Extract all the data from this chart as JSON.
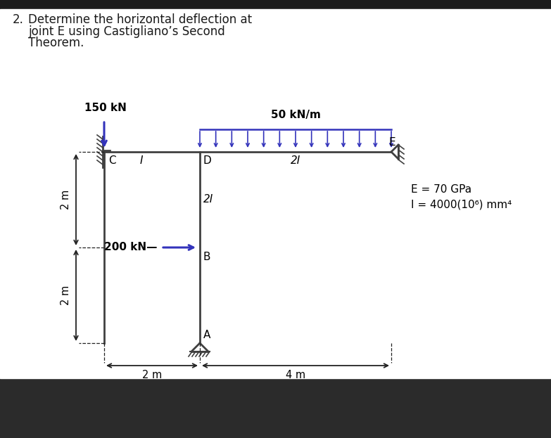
{
  "outer_bg": "#2b2b2b",
  "white_bg": "#ffffff",
  "struct_color": "#404040",
  "load_color": "#3333bb",
  "dim_color": "#222222",
  "label_150kN": "150 kN",
  "label_50kNm": "50 kN/m",
  "label_200kN": "200 kN",
  "label_E_prop": "E = 70 GPa",
  "label_I_prop": "I = 4000(10⁶) mm⁴",
  "node_C": "C",
  "node_I_label": "I",
  "node_D": "D",
  "node_2I_beam": "2I",
  "node_2I_col": "2I",
  "node_B": "B",
  "node_A": "A",
  "node_E": "E",
  "dim_2m_horiz": "2 m",
  "dim_4m_horiz": "4 m",
  "dim_2m_upper": "2 m",
  "dim_2m_lower": "2 m",
  "title_line1": "Determine the horizontal deflection at",
  "title_line2": "joint E using Castigliano’s Second",
  "title_line3": "Theorem.",
  "title_num": "2."
}
